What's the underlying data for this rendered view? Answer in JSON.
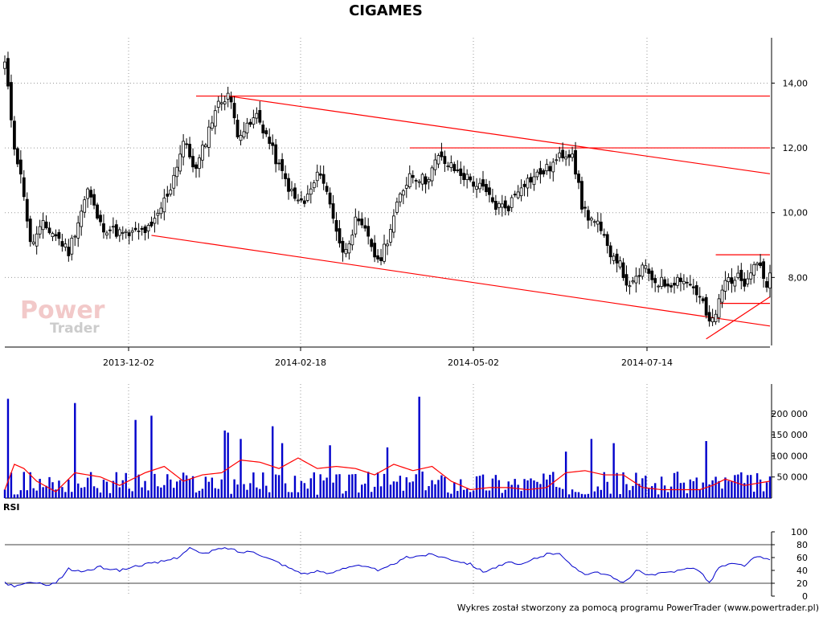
{
  "chart_data": [
    {
      "type": "candlestick",
      "title": "CIGAMES",
      "x_tick_labels": [
        "2013-12-02",
        "2014-02-18",
        "2014-05-02",
        "2014-07-14"
      ],
      "y_tick_labels": [
        "14,00",
        "12,00",
        "10,00",
        "8,00"
      ],
      "y_ticks": [
        14,
        12,
        10,
        8
      ],
      "ylim": [
        5.9,
        15.4
      ],
      "colors": {
        "up": "#ffffff",
        "down": "#000000",
        "wick": "#000000",
        "trendline": "#ff0000",
        "grid": "#999999"
      },
      "close_anchors": [
        [
          0,
          14.6
        ],
        [
          3,
          12.1
        ],
        [
          6,
          10.6
        ],
        [
          8,
          9.0
        ],
        [
          12,
          9.6
        ],
        [
          16,
          9.3
        ],
        [
          20,
          8.8
        ],
        [
          26,
          10.7
        ],
        [
          30,
          9.6
        ],
        [
          38,
          9.3
        ],
        [
          46,
          9.5
        ],
        [
          52,
          10.8
        ],
        [
          56,
          12.2
        ],
        [
          60,
          11.3
        ],
        [
          66,
          13.2
        ],
        [
          70,
          13.7
        ],
        [
          73,
          12.5
        ],
        [
          76,
          12.6
        ],
        [
          79,
          13.0
        ],
        [
          82,
          12.4
        ],
        [
          86,
          11.4
        ],
        [
          91,
          10.4
        ],
        [
          94,
          10.3
        ],
        [
          99,
          11.3
        ],
        [
          103,
          9.9
        ],
        [
          106,
          8.7
        ],
        [
          110,
          9.7
        ],
        [
          114,
          9.3
        ],
        [
          117,
          8.4
        ],
        [
          120,
          9.2
        ],
        [
          124,
          10.5
        ],
        [
          127,
          11.2
        ],
        [
          132,
          11.0
        ],
        [
          136,
          11.7
        ],
        [
          140,
          11.4
        ],
        [
          146,
          11.0
        ],
        [
          150,
          10.7
        ],
        [
          154,
          10.2
        ],
        [
          158,
          10.2
        ],
        [
          162,
          10.9
        ],
        [
          166,
          11.1
        ],
        [
          171,
          11.4
        ],
        [
          175,
          11.8
        ],
        [
          178,
          11.9
        ],
        [
          181,
          10.2
        ],
        [
          183,
          9.9
        ],
        [
          186,
          9.6
        ],
        [
          189,
          8.9
        ],
        [
          192,
          8.6
        ],
        [
          196,
          7.6
        ],
        [
          200,
          8.3
        ],
        [
          204,
          7.9
        ],
        [
          208,
          7.8
        ],
        [
          212,
          8.0
        ],
        [
          216,
          7.7
        ],
        [
          219,
          7.2
        ],
        [
          221,
          6.5
        ],
        [
          223,
          6.9
        ],
        [
          226,
          7.9
        ],
        [
          229,
          8.0
        ],
        [
          232,
          7.9
        ],
        [
          235,
          8.5
        ],
        [
          237,
          8.4
        ],
        [
          239,
          7.7
        ],
        [
          240,
          8.0
        ]
      ],
      "trendlines": [
        {
          "from": [
            60,
            13.6
          ],
          "to": [
            240,
            13.6
          ]
        },
        {
          "from": [
            70,
            13.6
          ],
          "to": [
            240,
            11.2
          ]
        },
        {
          "from": [
            127,
            12.0
          ],
          "to": [
            240,
            12.0
          ]
        },
        {
          "from": [
            46,
            9.3
          ],
          "to": [
            240,
            6.5
          ]
        },
        {
          "from": [
            223,
            8.7
          ],
          "to": [
            240,
            8.7
          ]
        },
        {
          "from": [
            224,
            7.2
          ],
          "to": [
            240,
            7.2
          ]
        },
        {
          "from": [
            220,
            6.1
          ],
          "to": [
            240,
            7.4
          ]
        }
      ]
    },
    {
      "type": "bar",
      "series_type": "volume",
      "y_tick_labels": [
        "200 000",
        "150 000",
        "100 000",
        "50 000"
      ],
      "y_ticks": [
        200000,
        150000,
        100000,
        50000
      ],
      "ylim": [
        0,
        270000
      ],
      "spikes": [
        [
          1,
          235000
        ],
        [
          22,
          225000
        ],
        [
          41,
          185000
        ],
        [
          46,
          195000
        ],
        [
          69,
          160000
        ],
        [
          70,
          155000
        ],
        [
          74,
          140000
        ],
        [
          84,
          170000
        ],
        [
          87,
          130000
        ],
        [
          102,
          125000
        ],
        [
          120,
          120000
        ],
        [
          130,
          240000
        ],
        [
          176,
          110000
        ],
        [
          184,
          140000
        ],
        [
          191,
          130000
        ],
        [
          220,
          135000
        ]
      ],
      "moving_average_color": "#ff0000",
      "moving_average_anchors": [
        [
          0,
          20000
        ],
        [
          3,
          80000
        ],
        [
          6,
          70000
        ],
        [
          10,
          40000
        ],
        [
          16,
          15000
        ],
        [
          22,
          60000
        ],
        [
          30,
          50000
        ],
        [
          36,
          30000
        ],
        [
          44,
          60000
        ],
        [
          50,
          75000
        ],
        [
          56,
          40000
        ],
        [
          62,
          55000
        ],
        [
          68,
          60000
        ],
        [
          74,
          90000
        ],
        [
          80,
          85000
        ],
        [
          86,
          70000
        ],
        [
          92,
          95000
        ],
        [
          98,
          70000
        ],
        [
          104,
          75000
        ],
        [
          110,
          70000
        ],
        [
          116,
          55000
        ],
        [
          122,
          80000
        ],
        [
          128,
          65000
        ],
        [
          134,
          75000
        ],
        [
          140,
          40000
        ],
        [
          146,
          20000
        ],
        [
          152,
          25000
        ],
        [
          158,
          25000
        ],
        [
          164,
          20000
        ],
        [
          170,
          25000
        ],
        [
          176,
          60000
        ],
        [
          182,
          65000
        ],
        [
          188,
          55000
        ],
        [
          194,
          55000
        ],
        [
          200,
          25000
        ],
        [
          206,
          20000
        ],
        [
          212,
          20000
        ],
        [
          218,
          20000
        ],
        [
          222,
          30000
        ],
        [
          226,
          45000
        ],
        [
          232,
          30000
        ],
        [
          240,
          40000
        ]
      ]
    },
    {
      "type": "line",
      "label": "RSI",
      "y_tick_labels": [
        "100",
        "80",
        "60",
        "40",
        "20",
        "0"
      ],
      "y_ticks": [
        100,
        80,
        60,
        40,
        20,
        0
      ],
      "ylim": [
        0,
        100
      ],
      "reference_lines": [
        80,
        20
      ],
      "line_color": "#0000cc",
      "anchors": [
        [
          0,
          20
        ],
        [
          4,
          15
        ],
        [
          8,
          22
        ],
        [
          12,
          18
        ],
        [
          16,
          20
        ],
        [
          20,
          42
        ],
        [
          24,
          38
        ],
        [
          30,
          45
        ],
        [
          36,
          40
        ],
        [
          42,
          48
        ],
        [
          48,
          52
        ],
        [
          54,
          60
        ],
        [
          58,
          75
        ],
        [
          62,
          65
        ],
        [
          66,
          72
        ],
        [
          70,
          75
        ],
        [
          74,
          68
        ],
        [
          78,
          70
        ],
        [
          82,
          60
        ],
        [
          86,
          52
        ],
        [
          90,
          42
        ],
        [
          94,
          35
        ],
        [
          98,
          38
        ],
        [
          102,
          35
        ],
        [
          106,
          44
        ],
        [
          110,
          48
        ],
        [
          114,
          44
        ],
        [
          118,
          40
        ],
        [
          122,
          50
        ],
        [
          126,
          60
        ],
        [
          130,
          63
        ],
        [
          134,
          65
        ],
        [
          138,
          60
        ],
        [
          142,
          55
        ],
        [
          146,
          50
        ],
        [
          150,
          38
        ],
        [
          154,
          45
        ],
        [
          158,
          52
        ],
        [
          162,
          48
        ],
        [
          166,
          58
        ],
        [
          170,
          65
        ],
        [
          174,
          68
        ],
        [
          178,
          45
        ],
        [
          182,
          35
        ],
        [
          186,
          38
        ],
        [
          190,
          30
        ],
        [
          194,
          20
        ],
        [
          198,
          40
        ],
        [
          202,
          32
        ],
        [
          206,
          35
        ],
        [
          210,
          38
        ],
        [
          214,
          45
        ],
        [
          218,
          40
        ],
        [
          221,
          20
        ],
        [
          224,
          45
        ],
        [
          228,
          50
        ],
        [
          232,
          48
        ],
        [
          236,
          62
        ],
        [
          240,
          55
        ]
      ]
    }
  ],
  "watermark": {
    "line1": "Power",
    "line2": "Trader"
  },
  "footer": "Wykres został stworzony za pomocą programu PowerTrader (www.powertrader.pl)"
}
